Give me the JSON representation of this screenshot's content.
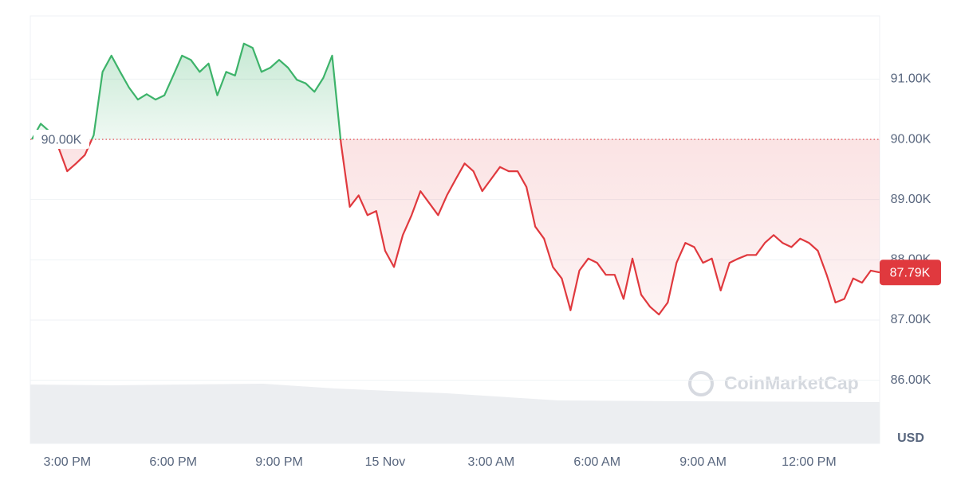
{
  "chart_data": {
    "type": "line",
    "categories": [
      null,
      null,
      null,
      null,
      "3:00 PM",
      null,
      null,
      null,
      null,
      null,
      null,
      null,
      null,
      null,
      null,
      null,
      "6:00 PM",
      null,
      null,
      null,
      null,
      null,
      null,
      null,
      null,
      null,
      null,
      null,
      "9:00 PM",
      null,
      null,
      null,
      null,
      null,
      null,
      null,
      null,
      null,
      null,
      null,
      "15 Nov",
      null,
      null,
      null,
      null,
      null,
      null,
      null,
      null,
      null,
      null,
      null,
      "3:00 AM",
      null,
      null,
      null,
      null,
      null,
      null,
      null,
      null,
      null,
      null,
      null,
      "6:00 AM",
      null,
      null,
      null,
      null,
      null,
      null,
      null,
      null,
      null,
      null,
      null,
      "9:00 AM",
      null,
      null,
      null,
      null,
      null,
      null,
      null,
      null,
      null,
      null,
      null,
      "12:00 PM",
      null,
      null,
      null,
      null,
      null,
      null,
      null,
      null
    ],
    "values": [
      90000,
      90260,
      90130,
      89870,
      89470,
      89600,
      89740,
      90070,
      91120,
      91390,
      91120,
      90860,
      90660,
      90750,
      90660,
      90730,
      91060,
      91390,
      91320,
      91120,
      91260,
      90730,
      91120,
      91060,
      91590,
      91520,
      91120,
      91190,
      91320,
      91190,
      90990,
      90930,
      90790,
      91020,
      91390,
      89930,
      88880,
      89070,
      88740,
      88810,
      88150,
      87880,
      88410,
      88740,
      89140,
      88940,
      88740,
      89070,
      89340,
      89600,
      89470,
      89140,
      89340,
      89540,
      89470,
      89470,
      89210,
      88550,
      88350,
      87880,
      87690,
      87160,
      87820,
      88020,
      87950,
      87750,
      87750,
      87350,
      88020,
      87420,
      87220,
      87090,
      87290,
      87950,
      88280,
      88210,
      87950,
      88020,
      87490,
      87950,
      88020,
      88080,
      88080,
      88280,
      88410,
      88280,
      88210,
      88350,
      88280,
      88150,
      87750,
      87290,
      87350,
      87690,
      87620,
      87820,
      87790
    ],
    "value_labels": [
      null,
      null,
      null,
      null,
      null,
      null,
      null,
      null,
      null,
      null,
      null,
      null,
      null,
      null,
      null,
      null,
      null,
      null,
      null,
      null,
      null,
      null,
      null,
      null,
      null,
      null,
      null,
      null,
      null,
      null,
      null,
      null,
      null,
      null,
      null,
      null,
      null,
      null,
      null,
      null,
      null,
      null,
      null,
      null,
      null,
      null,
      null,
      null,
      null,
      null,
      null,
      null,
      null,
      null,
      null,
      null,
      null,
      null,
      null,
      null,
      null,
      null,
      null,
      null,
      null,
      null,
      null,
      null,
      null,
      null,
      null,
      null,
      null,
      null,
      null,
      null,
      null,
      null,
      null,
      null,
      null,
      null,
      null,
      null,
      null,
      null,
      null,
      null,
      null,
      null,
      null,
      null,
      null,
      null,
      null,
      null,
      "87.79K"
    ],
    "baseline": {
      "value": 90000,
      "label": "90.00K"
    },
    "above_color": "#3db36a",
    "below_color": "#e0393e",
    "ylim": [
      84950,
      92050
    ],
    "yticks": [
      {
        "value": 86000,
        "label": "86.00K"
      },
      {
        "value": 87000,
        "label": "87.00K"
      },
      {
        "value": 88000,
        "label": "88.00K"
      },
      {
        "value": 89000,
        "label": "89.00K"
      },
      {
        "value": 90000,
        "label": "90.00K"
      },
      {
        "value": 91000,
        "label": "91.00K"
      }
    ],
    "y_unit": "USD",
    "watermark": "CoinMarketCap",
    "grid": true
  }
}
